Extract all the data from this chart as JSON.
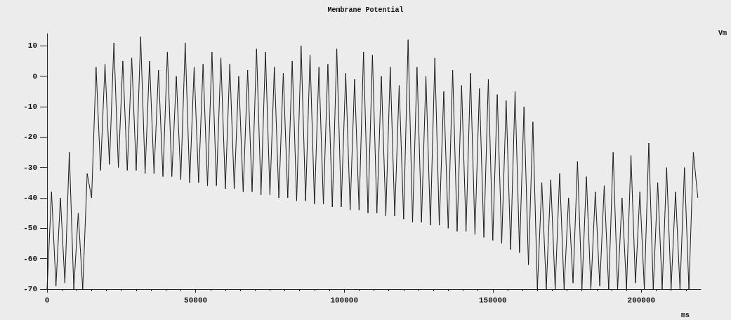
{
  "chart_data": {
    "type": "line",
    "title": "Membrane Potential",
    "xlabel": "ms",
    "ylabel": "Vm",
    "xlim": [
      0,
      220000
    ],
    "xticks": [
      0,
      50000,
      100000,
      150000,
      200000
    ],
    "ylim": [
      -70,
      14
    ],
    "yticks": [
      -70,
      -60,
      -50,
      -40,
      -30,
      -20,
      -10,
      0,
      10
    ],
    "grid": false,
    "marker": "none",
    "line_style": "solid",
    "series": [
      {
        "color": "#1a1a1a",
        "x": [
          0,
          1500,
          3000,
          4500,
          6000,
          7500,
          9000,
          10500,
          12000,
          13500,
          15000,
          16500,
          18000,
          19500,
          21000,
          22500,
          24000,
          25500,
          27000,
          28500,
          30000,
          31500,
          33000,
          34500,
          36000,
          37500,
          39000,
          40500,
          42000,
          43500,
          45000,
          46500,
          48000,
          49500,
          51000,
          52500,
          54000,
          55500,
          57000,
          58500,
          60000,
          61500,
          63000,
          64500,
          66000,
          67500,
          69000,
          70500,
          72000,
          73500,
          75000,
          76500,
          78000,
          79500,
          81000,
          82500,
          84000,
          85500,
          87000,
          88500,
          90000,
          91500,
          93000,
          94500,
          96000,
          97500,
          99000,
          100500,
          102000,
          103500,
          105000,
          106500,
          108000,
          109500,
          111000,
          112500,
          114000,
          115500,
          117000,
          118500,
          120000,
          121500,
          123000,
          124500,
          126000,
          127500,
          129000,
          130500,
          132000,
          133500,
          135000,
          136500,
          138000,
          139500,
          141000,
          142500,
          144000,
          145500,
          147000,
          148500,
          150000,
          151500,
          153000,
          154500,
          156000,
          157500,
          159000,
          160500,
          162000,
          163500,
          165000,
          166500,
          168000,
          169500,
          171000,
          172500,
          174000,
          175500,
          177000,
          178500,
          180000,
          181500,
          183000,
          184500,
          186000,
          187500,
          189000,
          190500,
          192000,
          193500,
          195000,
          196500,
          198000,
          199500,
          201000,
          202500,
          204000,
          205500,
          207000,
          208500,
          210000,
          211500,
          213000,
          214500,
          216000,
          217500,
          219000
        ],
        "values": [
          -70,
          -38,
          -69,
          -40,
          -68,
          -25,
          -70,
          -45,
          -70,
          -32,
          -40,
          3,
          -31,
          4,
          -29,
          11,
          -30,
          5,
          -31,
          6,
          -31,
          13,
          -32,
          5,
          -32,
          2,
          -33,
          8,
          -33,
          0,
          -34,
          11,
          -35,
          3,
          -35,
          4,
          -36,
          8,
          -36,
          6,
          -37,
          4,
          -37,
          0,
          -38,
          2,
          -38,
          9,
          -39,
          8,
          -39,
          3,
          -40,
          1,
          -40,
          5,
          -41,
          10,
          -41,
          7,
          -42,
          3,
          -42,
          4,
          -43,
          9,
          -43,
          1,
          -44,
          -1,
          -44,
          8,
          -45,
          7,
          -45,
          0,
          -46,
          3,
          -46,
          -3,
          -47,
          12,
          -48,
          3,
          -48,
          0,
          -49,
          6,
          -49,
          -5,
          -50,
          2,
          -51,
          -3,
          -51,
          1,
          -52,
          -4,
          -53,
          -1,
          -54,
          -6,
          -55,
          -8,
          -57,
          -5,
          -58,
          -10,
          -62,
          -15,
          -70,
          -35,
          -70,
          -34,
          -70,
          -32,
          -70,
          -40,
          -68,
          -28,
          -70,
          -33,
          -70,
          -38,
          -69,
          -36,
          -70,
          -25,
          -70,
          -40,
          -70,
          -26,
          -68,
          -38,
          -70,
          -22,
          -70,
          -35,
          -70,
          -30,
          -70,
          -38,
          -70,
          -30,
          -70,
          -25,
          -40
        ]
      }
    ]
  }
}
